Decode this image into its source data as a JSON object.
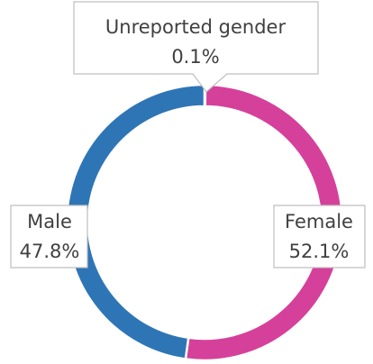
{
  "chart_data": {
    "type": "donut",
    "categories": [
      "Unreported gender",
      "Female",
      "Male"
    ],
    "values": [
      0.1,
      52.1,
      47.8
    ],
    "value_labels": [
      "0.1%",
      "52.1%",
      "47.8%"
    ],
    "colors": [
      "#a5a5a5",
      "#d5409a",
      "#2e75b6"
    ]
  }
}
